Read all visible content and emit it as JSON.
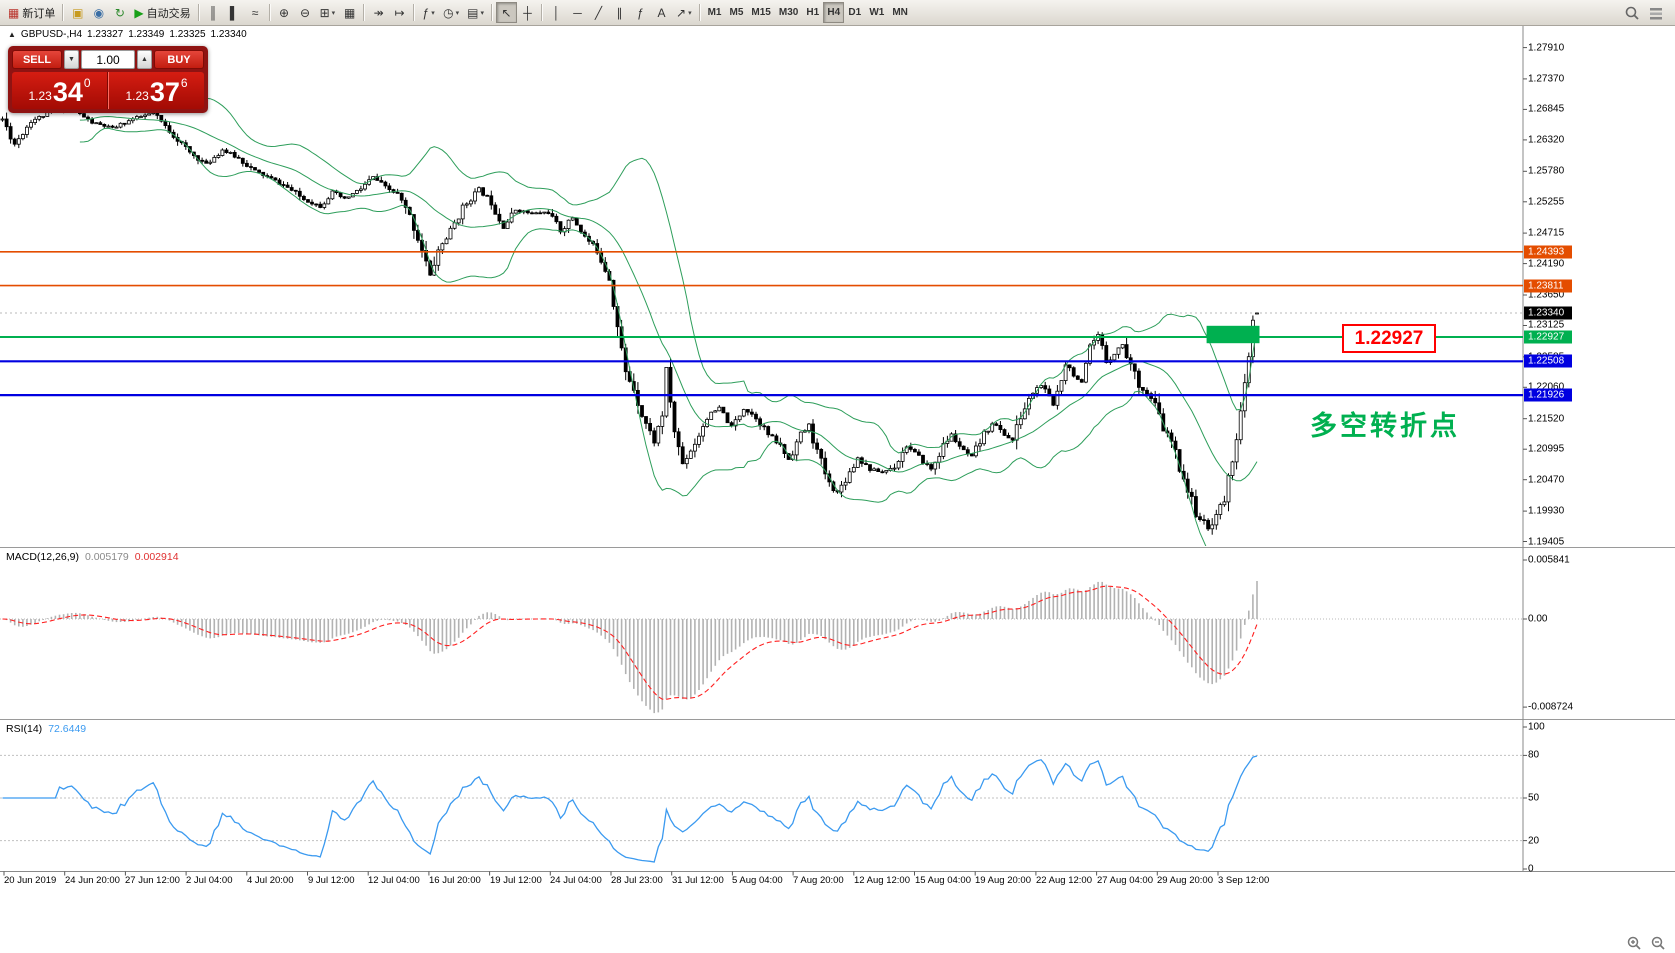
{
  "glyphs": {
    "collapse_arrow": "▲",
    "stepper_down": "▼",
    "stepper_up": "▲",
    "dropdown_caret": "▾"
  },
  "colors": {
    "bull": "#ffffff",
    "bear": "#000000",
    "wick": "#000000",
    "bollinger": "#2e9e5b",
    "macd_hist": "#b2b2b2",
    "macd_signal": "#ff2020",
    "rsi": "#3b9af0",
    "hline_orange": "#e44d00",
    "hline_green": "#00b050",
    "hline_blue": "#0000e0",
    "tag_current_bg": "#000000",
    "flag_red": "#ff0000",
    "note_green": "#00b050"
  },
  "toolbar": {
    "groups": [
      {
        "items": [
          {
            "name": "new-order-button",
            "icon": "▦",
            "icon_color": "#b9332b",
            "label": "新订单"
          }
        ]
      },
      {
        "items": [
          {
            "name": "expert-advisors-button",
            "icon": "▣",
            "icon_color": "#c79a1e"
          },
          {
            "name": "community-button",
            "icon": "◉",
            "icon_color": "#3a6ea5"
          },
          {
            "name": "refresh-button",
            "icon": "↻",
            "icon_color": "#2d8a2d"
          },
          {
            "name": "autotrading-button",
            "icon": "▶",
            "icon_color": "#18a018",
            "label": "自动交易"
          }
        ]
      },
      {
        "items": [
          {
            "name": "bar-chart-button",
            "icon": "║"
          },
          {
            "name": "candlestick-chart-button",
            "icon": "▌"
          },
          {
            "name": "line-chart-button",
            "icon": "≈"
          }
        ]
      },
      {
        "items": [
          {
            "name": "zoom-in-button",
            "icon": "⊕"
          },
          {
            "name": "zoom-out-button",
            "icon": "⊖"
          },
          {
            "name": "new-chart-button",
            "icon": "⊞",
            "caret": true
          },
          {
            "name": "tile-windows-button",
            "icon": "▦"
          }
        ]
      },
      {
        "items": [
          {
            "name": "auto-scroll-button",
            "icon": "↠"
          },
          {
            "name": "chart-shift-button",
            "icon": "↦"
          }
        ]
      },
      {
        "items": [
          {
            "name": "indicators-button",
            "icon": "ƒ",
            "caret": true
          },
          {
            "name": "periods-button",
            "icon": "◷",
            "caret": true
          },
          {
            "name": "templates-button",
            "icon": "▤",
            "caret": true
          }
        ]
      },
      {
        "items": [
          {
            "name": "cursor-button",
            "icon": "↖",
            "pressed": true
          },
          {
            "name": "crosshair-button",
            "icon": "┼"
          }
        ]
      },
      {
        "items": [
          {
            "name": "vertical-line-button",
            "icon": "│"
          },
          {
            "name": "horizontal-line-button",
            "icon": "─"
          },
          {
            "name": "trendline-button",
            "icon": "╱"
          },
          {
            "name": "equidistant-channel-button",
            "icon": "∥"
          },
          {
            "name": "fibonacci-button",
            "icon": "ƒ"
          },
          {
            "name": "text-button",
            "icon": "A"
          },
          {
            "name": "arrows-button",
            "icon": "↗",
            "caret": true
          }
        ]
      }
    ],
    "timeframes": {
      "items": [
        "M1",
        "M5",
        "M15",
        "M30",
        "H1",
        "H4",
        "D1",
        "W1",
        "MN"
      ],
      "active": "H4"
    }
  },
  "chart_header": {
    "symbol": "GBPUSD-,H4",
    "open": "1.23327",
    "high": "1.23349",
    "low": "1.23325",
    "close": "1.23340"
  },
  "one_click": {
    "sell_label": "SELL",
    "buy_label": "BUY",
    "volume": "1.00",
    "sell_price": {
      "base": "1.23",
      "big": "34",
      "pip": "0"
    },
    "buy_price": {
      "base": "1.23",
      "big": "37",
      "pip": "6"
    }
  },
  "annotations": {
    "price_flag": "1.22927",
    "note_cn": "多空转折点"
  },
  "panes": {
    "macd": {
      "label": "MACD(12,26,9)",
      "value_main": "0.005179",
      "value_signal": "0.002914",
      "axis": [
        "0.005841",
        "0.00",
        "-0.008724"
      ]
    },
    "rsi": {
      "label": "RSI(14)",
      "value": "72.6449",
      "axis": [
        "100",
        "80",
        "50",
        "20",
        "0"
      ]
    }
  },
  "price_axis": {
    "labels": [
      "1.27910",
      "1.27370",
      "1.26845",
      "1.26320",
      "1.25780",
      "1.25255",
      "1.24715",
      "1.24190",
      "1.23650",
      "1.23125",
      "1.22585",
      "1.22060",
      "1.21520",
      "1.20995",
      "1.20470",
      "1.19930",
      "1.19405"
    ]
  },
  "price_tags": [
    {
      "text": "1.24393",
      "bg": "#e44d00",
      "price": 1.24393
    },
    {
      "text": "1.23811",
      "bg": "#e44d00",
      "price": 1.23811
    },
    {
      "text": "1.22508",
      "bg": "#0000e0",
      "price": 1.22508
    },
    {
      "text": "1.21926",
      "bg": "#0000e0",
      "price": 1.21926
    },
    {
      "text": "1.22927",
      "bg": "#00b050",
      "price": 1.22927
    },
    {
      "text": "1.23340",
      "bg": "#000000",
      "price": 1.2334
    }
  ],
  "time_axis": {
    "labels": [
      "20 Jun 2019",
      "24 Jun 20:00",
      "27 Jun 12:00",
      "2 Jul 04:00",
      "4 Jul 20:00",
      "9 Jul 12:00",
      "12 Jul 04:00",
      "16 Jul 20:00",
      "19 Jul 12:00",
      "24 Jul 04:00",
      "28 Jul 23:00",
      "31 Jul 12:00",
      "5 Aug 04:00",
      "7 Aug 20:00",
      "12 Aug 12:00",
      "15 Aug 04:00",
      "19 Aug 20:00",
      "22 Aug 12:00",
      "27 Aug 04:00",
      "29 Aug 20:00",
      "3 Sep 12:00"
    ]
  },
  "chart_data": {
    "type": "candlestick",
    "symbol": "GBPUSD",
    "timeframe": "H4",
    "bars_visible": 309,
    "price_range_visible": [
      1.1925,
      1.282
    ],
    "current_price": 1.2334,
    "last_candle": {
      "o": 1.23327,
      "h": 1.23349,
      "l": 1.23325,
      "c": 1.2334
    },
    "close_path_anchors": [
      [
        0,
        1.2668
      ],
      [
        3,
        1.2625
      ],
      [
        7,
        1.2665
      ],
      [
        12,
        1.268
      ],
      [
        17,
        1.2686
      ],
      [
        22,
        1.2662
      ],
      [
        27,
        1.2652
      ],
      [
        32,
        1.2668
      ],
      [
        37,
        1.2678
      ],
      [
        42,
        1.264
      ],
      [
        46,
        1.261
      ],
      [
        50,
        1.259
      ],
      [
        54,
        1.2615
      ],
      [
        58,
        1.26
      ],
      [
        62,
        1.2578
      ],
      [
        66,
        1.2565
      ],
      [
        70,
        1.255
      ],
      [
        74,
        1.253
      ],
      [
        78,
        1.2518
      ],
      [
        81,
        1.2542
      ],
      [
        84,
        1.253
      ],
      [
        88,
        1.2548
      ],
      [
        91,
        1.2568
      ],
      [
        94,
        1.255
      ],
      [
        97,
        1.2538
      ],
      [
        100,
        1.25
      ],
      [
        103,
        1.2445
      ],
      [
        105,
        1.2398
      ],
      [
        107,
        1.2442
      ],
      [
        110,
        1.2475
      ],
      [
        113,
        1.2515
      ],
      [
        117,
        1.2548
      ],
      [
        120,
        1.2525
      ],
      [
        123,
        1.2482
      ],
      [
        126,
        1.2512
      ],
      [
        130,
        1.2505
      ],
      [
        134,
        1.2508
      ],
      [
        137,
        1.2475
      ],
      [
        140,
        1.2498
      ],
      [
        143,
        1.2465
      ],
      [
        146,
        1.2442
      ],
      [
        149,
        1.2395
      ],
      [
        151,
        1.231
      ],
      [
        153,
        1.223
      ],
      [
        155,
        1.2205
      ],
      [
        157,
        1.216
      ],
      [
        160,
        1.2112
      ],
      [
        162,
        1.216
      ],
      [
        163,
        1.2235
      ],
      [
        165,
        1.213
      ],
      [
        167,
        1.2075
      ],
      [
        170,
        1.211
      ],
      [
        173,
        1.2155
      ],
      [
        176,
        1.217
      ],
      [
        179,
        1.2138
      ],
      [
        182,
        1.217
      ],
      [
        185,
        1.2155
      ],
      [
        188,
        1.2125
      ],
      [
        191,
        1.2105
      ],
      [
        193,
        1.2082
      ],
      [
        196,
        1.2125
      ],
      [
        198,
        1.214
      ],
      [
        200,
        1.2095
      ],
      [
        203,
        1.204
      ],
      [
        205,
        1.2025
      ],
      [
        208,
        1.206
      ],
      [
        210,
        1.2085
      ],
      [
        213,
        1.2065
      ],
      [
        216,
        1.206
      ],
      [
        219,
        1.207
      ],
      [
        222,
        1.2105
      ],
      [
        225,
        1.2085
      ],
      [
        228,
        1.2065
      ],
      [
        231,
        1.2105
      ],
      [
        233,
        1.2125
      ],
      [
        236,
        1.2095
      ],
      [
        238,
        1.2085
      ],
      [
        241,
        1.2125
      ],
      [
        243,
        1.2145
      ],
      [
        246,
        1.2125
      ],
      [
        248,
        1.2115
      ],
      [
        250,
        1.2155
      ],
      [
        253,
        1.2198
      ],
      [
        255,
        1.221
      ],
      [
        258,
        1.2175
      ],
      [
        261,
        1.2248
      ],
      [
        263,
        1.223
      ],
      [
        265,
        1.221
      ],
      [
        267,
        1.227
      ],
      [
        269,
        1.2295
      ],
      [
        271,
        1.225
      ],
      [
        273,
        1.2265
      ],
      [
        275,
        1.228
      ],
      [
        277,
        1.2245
      ],
      [
        279,
        1.2212
      ],
      [
        281,
        1.2195
      ],
      [
        283,
        1.2175
      ],
      [
        285,
        1.2135
      ],
      [
        287,
        1.2112
      ],
      [
        289,
        1.207
      ],
      [
        291,
        1.203
      ],
      [
        293,
        1.199
      ],
      [
        295,
        1.1972
      ],
      [
        296,
        1.1962
      ],
      [
        298,
        1.1988
      ],
      [
        300,
        1.2012
      ],
      [
        302,
        1.2085
      ],
      [
        304,
        1.216
      ],
      [
        306,
        1.2255
      ],
      [
        307,
        1.232
      ],
      [
        308,
        1.2334
      ]
    ],
    "hlines": [
      {
        "price": 1.24393,
        "color": "#e44d00",
        "width": 1.6
      },
      {
        "price": 1.23811,
        "color": "#e44d00",
        "width": 1.6
      },
      {
        "price": 1.22927,
        "color": "#00b050",
        "width": 2
      },
      {
        "price": 1.22508,
        "color": "#0000e0",
        "width": 2.2
      },
      {
        "price": 1.21926,
        "color": "#0000e0",
        "width": 2.2
      }
    ],
    "rectangle": {
      "bar_start": 296,
      "bar_end": 309,
      "price_top": 1.2312,
      "price_bottom": 1.2282,
      "color": "#00b050"
    },
    "indicators": {
      "bollinger": {
        "period": 20,
        "deviation": 2,
        "color": "#2e9e5b"
      },
      "macd": {
        "fast": 12,
        "slow": 26,
        "signal": 9,
        "last_main": 0.005179,
        "last_signal": 0.002914,
        "scale_max": 0.005841,
        "scale_min": -0.008724
      },
      "rsi": {
        "period": 14,
        "last": 72.6449,
        "levels": [
          80,
          50,
          20
        ]
      }
    }
  }
}
